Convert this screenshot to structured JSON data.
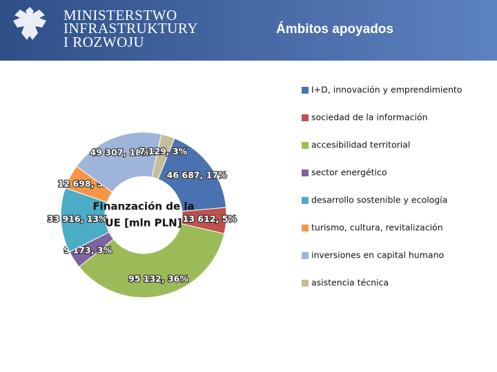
{
  "header": {
    "lines": [
      "MINISTERSTWO",
      "INFRASTRUKTURY",
      "I ROZWOJU"
    ]
  },
  "chart_data": {
    "type": "donut",
    "title": "Ámbitos apoyados",
    "center_label": [
      "Finanzación de la",
      "UE [mln PLN]"
    ],
    "categories": [
      "I+D, innovación y emprendimiento",
      "sociedad de la información",
      "accesibilidad territorial",
      "sector energético",
      "desarrollo sostenible y ecología",
      "turismo, cultura, revitalización",
      "inversiones en capital humano",
      "asistencia técnica"
    ],
    "values": [
      46687,
      13612,
      95132,
      9173,
      33916,
      12698,
      49307,
      7129
    ],
    "value_labels": [
      "46 687, 17%",
      "13 612, 5%",
      "95 132, 36%",
      "9 173, 3%",
      "33 916, 13%",
      "12 698, 5%",
      "49 307, 18%",
      "7 129, 3%"
    ],
    "colors": [
      "#4a72b0",
      "#c0504d",
      "#9bbb59",
      "#7f62a0",
      "#4bacc6",
      "#f79646",
      "#9fb4d9",
      "#c4bd97"
    ],
    "legend": "right"
  }
}
